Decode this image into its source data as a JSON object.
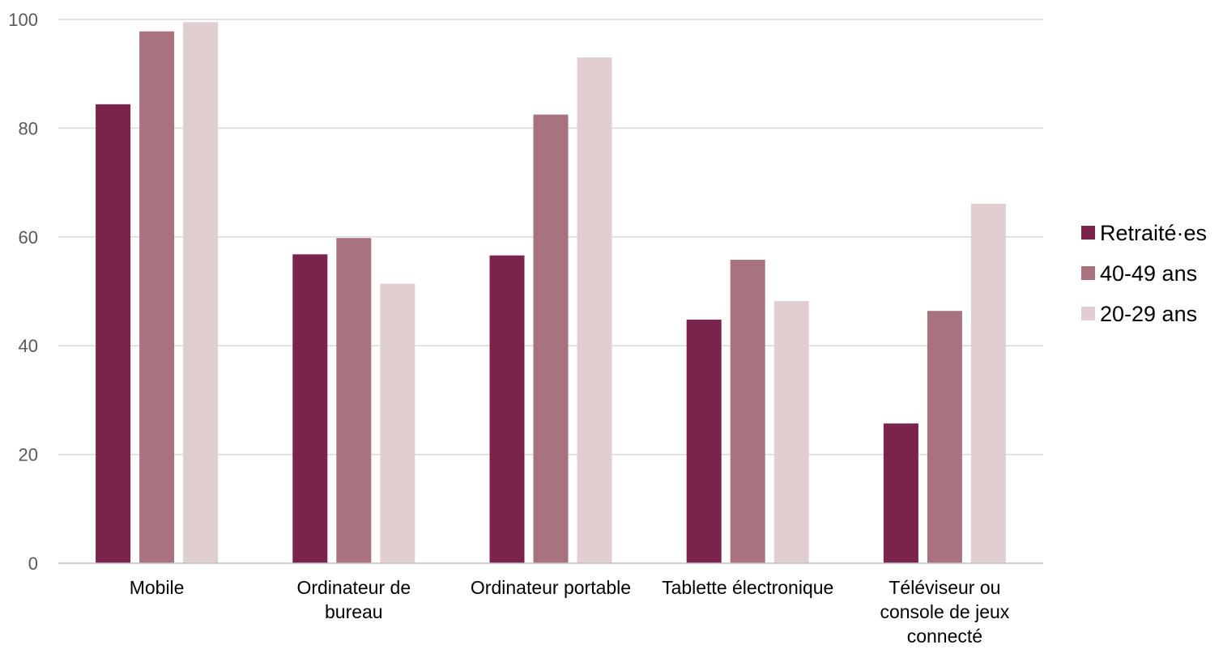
{
  "chart_data": {
    "type": "bar",
    "categories": [
      [
        "Mobile"
      ],
      [
        "Ordinateur de",
        "bureau"
      ],
      [
        "Ordinateur portable"
      ],
      [
        "Tablette électronique"
      ],
      [
        "Téléviseur ou",
        "console de jeux",
        "connecté"
      ]
    ],
    "series": [
      {
        "name": "Retraité·es",
        "color": "#7a234b",
        "values": [
          84.4,
          56.8,
          56.6,
          44.8,
          25.7
        ]
      },
      {
        "name": "40-49 ans",
        "color": "#a8737f",
        "values": [
          97.8,
          59.8,
          82.5,
          55.8,
          46.4
        ]
      },
      {
        "name": "20-29 ans",
        "color": "#e0ced1",
        "values": [
          99.5,
          51.4,
          93.0,
          48.2,
          66.1
        ]
      }
    ],
    "yticks": [
      0,
      20,
      40,
      60,
      80,
      100
    ],
    "ylim": [
      0,
      100
    ],
    "grid": true,
    "legend_position": "right"
  }
}
